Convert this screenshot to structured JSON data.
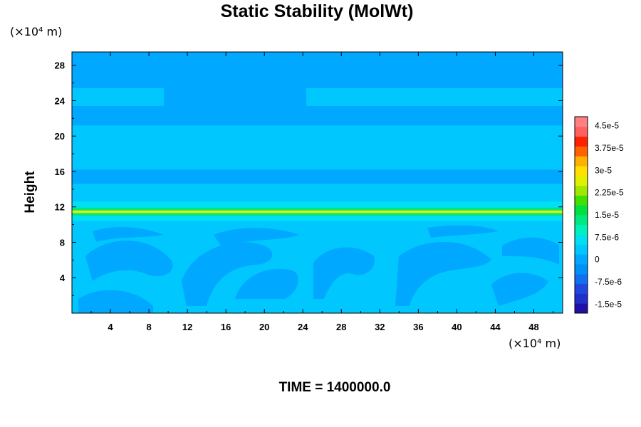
{
  "chart_data": {
    "type": "heatmap",
    "title": "Static Stability (MolWt)",
    "xlabel": "",
    "ylabel": "Height",
    "x_unit": "(×10⁴ m)",
    "y_unit": "(×10⁴ m)",
    "xlim": [
      0,
      51
    ],
    "ylim": [
      0,
      29.5
    ],
    "x_ticks": [
      4,
      8,
      12,
      16,
      20,
      24,
      28,
      32,
      36,
      40,
      44,
      48
    ],
    "y_ticks": [
      4,
      8,
      12,
      16,
      20,
      24,
      28
    ],
    "x_tick_labels": [
      "4",
      "8",
      "12",
      "16",
      "20",
      "24",
      "28",
      "32",
      "36",
      "40",
      "44",
      "48"
    ],
    "y_tick_labels": [
      "4",
      "8",
      "12",
      "16",
      "20",
      "24",
      "28"
    ],
    "colorbar": {
      "labels": [
        "4.5e-5",
        "3.75e-5",
        "3e-5",
        "2.25e-5",
        "1.5e-5",
        "7.5e-6",
        "0",
        "-7.5e-6",
        "-1.5e-5"
      ],
      "label_values": [
        4.5e-05,
        3.75e-05,
        3e-05,
        2.25e-05,
        1.5e-05,
        7.5e-06,
        0,
        -7.5e-06,
        -1.5e-05
      ],
      "range": [
        -1.8e-05,
        4.8e-05
      ],
      "colors": [
        "#2010a8",
        "#2030c8",
        "#2048e0",
        "#1070f0",
        "#0090f8",
        "#00a8ff",
        "#00c8ff",
        "#00e0f0",
        "#00f0c0",
        "#00e880",
        "#00e040",
        "#40e000",
        "#a0e800",
        "#e0f000",
        "#ffe000",
        "#ffb000",
        "#ff6000",
        "#ff2000",
        "#ff6060",
        "#ff8080"
      ]
    },
    "field": {
      "background": "#00a8ff",
      "bands": [
        {
          "y_from": 25.0,
          "y_to": 29.5,
          "value": -2e-06,
          "color": "#00a8ff"
        },
        {
          "y_from": 23.4,
          "y_to": 25.4,
          "value": 0,
          "color": "#00c8ff"
        },
        {
          "y_from": 21.2,
          "y_to": 22.0,
          "value": -2e-06,
          "color": "#00a8ff"
        },
        {
          "y_from": 19.4,
          "y_to": 21.2,
          "value": 0,
          "color": "#00c8ff"
        },
        {
          "y_from": 16.2,
          "y_to": 19.4,
          "value": 0,
          "color": "#00c8ff"
        },
        {
          "y_from": 15.6,
          "y_to": 16.2,
          "value": -2e-06,
          "color": "#00a8ff"
        },
        {
          "y_from": 14.6,
          "y_to": 15.0,
          "value": -2e-06,
          "color": "#00a8ff"
        },
        {
          "y_from": 12.6,
          "y_to": 14.6,
          "value": 0,
          "color": "#00c8ff"
        },
        {
          "y_from": 11.9,
          "y_to": 12.6,
          "value": 4e-06,
          "color": "#00e0f0"
        },
        {
          "y_from": 11.6,
          "y_to": 11.9,
          "value": 1.5e-05,
          "color": "#00e880"
        },
        {
          "y_from": 11.3,
          "y_to": 11.6,
          "value": 2.6e-05,
          "color": "#e0f000"
        },
        {
          "y_from": 11.0,
          "y_to": 11.3,
          "value": 1.5e-05,
          "color": "#00e880"
        },
        {
          "y_from": 10.4,
          "y_to": 11.0,
          "value": 4e-06,
          "color": "#00e0f0"
        },
        {
          "y_from": 0.0,
          "y_to": 10.4,
          "value": 0,
          "color": "#00c8ff"
        }
      ]
    }
  },
  "footer": {
    "time_label": "TIME = 1400000.0"
  }
}
